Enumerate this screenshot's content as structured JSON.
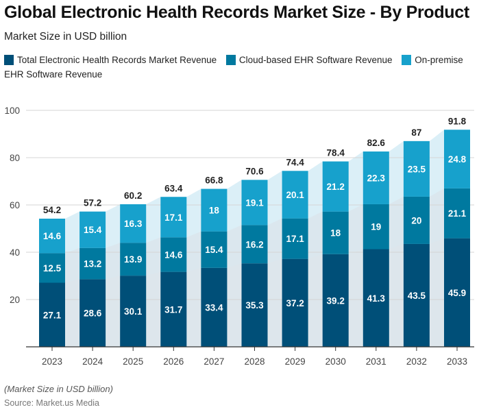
{
  "header": {
    "title": "Global Electronic Health Records Market Size - By Product",
    "subtitle": "Market Size in USD billion"
  },
  "legend": {
    "items": [
      {
        "label": "Total Electronic Health Records Market Revenue",
        "color": "#004f78"
      },
      {
        "label": "Cloud-based EHR Software Revenue",
        "color": "#00799f"
      },
      {
        "label": "On-premise EHR Software Revenue",
        "color": "#17a1cc"
      }
    ]
  },
  "footer": {
    "note": "(Market Size in USD billion)",
    "source": "Source: Market.us Media"
  },
  "chart_data": {
    "type": "bar",
    "stacked": true,
    "title": "Global Electronic Health Records Market Size - By Product",
    "subtitle": "Market Size in USD billion",
    "xlabel": "",
    "ylabel": "",
    "ylim": [
      0,
      100
    ],
    "yticks": [
      20,
      40,
      60,
      80,
      100
    ],
    "grid": true,
    "legend_position": "top-left",
    "categories": [
      "2023",
      "2024",
      "2025",
      "2026",
      "2027",
      "2028",
      "2029",
      "2030",
      "2031",
      "2032",
      "2033"
    ],
    "series": [
      {
        "name": "Total Electronic Health Records Market Revenue",
        "color": "#004f78",
        "values": [
          27.1,
          28.6,
          30.1,
          31.7,
          33.4,
          35.3,
          37.2,
          39.2,
          41.3,
          43.5,
          45.9
        ]
      },
      {
        "name": "Cloud-based EHR Software Revenue",
        "color": "#00799f",
        "values": [
          12.5,
          13.2,
          13.9,
          14.6,
          15.4,
          16.2,
          17.1,
          18,
          19,
          20,
          21.1
        ]
      },
      {
        "name": "On-premise EHR Software Revenue",
        "color": "#17a1cc",
        "values": [
          14.6,
          15.4,
          16.3,
          17.1,
          18,
          19.1,
          20.1,
          21.2,
          22.3,
          23.5,
          24.8
        ]
      }
    ],
    "totals": [
      54.2,
      57.2,
      60.2,
      63.4,
      66.8,
      70.6,
      74.4,
      78.4,
      82.6,
      87,
      91.8
    ]
  }
}
